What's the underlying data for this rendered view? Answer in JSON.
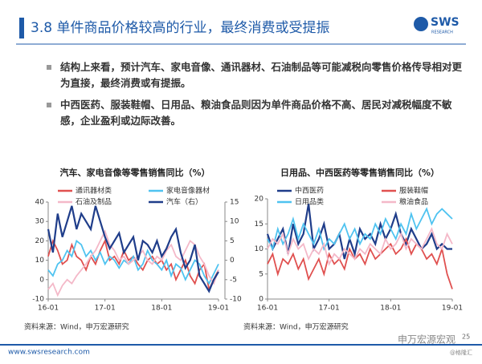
{
  "header": {
    "title": "3.8 单件商品价格较高的行业，最终消费或受提振",
    "logo": "SWS",
    "logo_sub": "RESEARCH"
  },
  "bullets": [
    "结构上来看，预计汽车、家电音像、通讯器材、石油制品等可能减税向零售价格传导相对更为直接，最终消费或有提振。",
    "中西医药、服装鞋帽、日用品、粮油食品则因为单件商品价格不高、居民对减税幅度不敏感，企业盈利或边际改善。"
  ],
  "chart_data": [
    {
      "type": "line",
      "title": "汽车、家电音像等零售销售同比（%）",
      "source": "资料来源：Wind，申万宏源研究",
      "categories": [
        "16-01",
        null,
        null,
        null,
        null,
        null,
        null,
        null,
        null,
        null,
        null,
        null,
        "17-01",
        null,
        null,
        null,
        null,
        null,
        null,
        null,
        null,
        null,
        null,
        null,
        "18-01",
        null,
        null,
        null,
        null,
        null,
        null,
        null,
        null,
        null,
        null,
        null,
        "19-01"
      ],
      "ylim": [
        -10,
        40
      ],
      "yticks": [
        -10,
        0,
        10,
        20,
        30,
        40
      ],
      "y2lim": [
        -10,
        15
      ],
      "y2ticks": [
        -10,
        -5,
        0,
        5,
        10,
        15
      ],
      "series": [
        {
          "name": "通讯器材类",
          "color": "#e0504f",
          "values": [
            12,
            20,
            15,
            8,
            10,
            18,
            12,
            10,
            5,
            12,
            8,
            15,
            20,
            10,
            12,
            8,
            15,
            10,
            12,
            8,
            5,
            10,
            12,
            8,
            10,
            5,
            8,
            0,
            5,
            10,
            2,
            -2,
            5,
            8,
            -5,
            0,
            5
          ]
        },
        {
          "name": "家电音像器材",
          "color": "#4fc3f0",
          "values": [
            5,
            2,
            8,
            10,
            15,
            12,
            20,
            18,
            12,
            15,
            10,
            14,
            8,
            12,
            10,
            6,
            10,
            8,
            12,
            5,
            8,
            15,
            10,
            8,
            5,
            10,
            2,
            8,
            6,
            0,
            5,
            10,
            8,
            2,
            -2,
            3,
            8
          ]
        },
        {
          "name": "石油及制品",
          "color": "#f4b8c8",
          "values": [
            -5,
            -2,
            -8,
            -3,
            0,
            -2,
            2,
            5,
            8,
            12,
            15,
            20,
            25,
            18,
            15,
            10,
            12,
            8,
            10,
            12,
            15,
            10,
            8,
            12,
            10,
            15,
            18,
            12,
            10,
            15,
            20,
            18,
            12,
            8,
            2,
            -2,
            5
          ]
        },
        {
          "name": "汽车（右）",
          "color": "#1f3d8a",
          "axis": "y2",
          "values": [
            8,
            2,
            12,
            6,
            10,
            14,
            8,
            12,
            10,
            8,
            14,
            10,
            6,
            3,
            5,
            7,
            2,
            4,
            6,
            0,
            5,
            4,
            2,
            5,
            1,
            3,
            6,
            8,
            2,
            -2,
            0,
            4,
            -4,
            -6,
            -8,
            -5,
            -3
          ]
        }
      ]
    },
    {
      "type": "line",
      "title": "日用品、中西医药等零售销售同比（%）",
      "source": "资料来源：Wind，申万宏源研究",
      "categories": [
        "16-01",
        null,
        null,
        null,
        null,
        null,
        null,
        null,
        null,
        null,
        null,
        null,
        "17-01",
        null,
        null,
        null,
        null,
        null,
        null,
        null,
        null,
        null,
        null,
        null,
        "18-01",
        null,
        null,
        null,
        null,
        null,
        null,
        null,
        null,
        null,
        null,
        null,
        "19-01"
      ],
      "ylim": [
        0,
        20
      ],
      "yticks": [
        0,
        5,
        10,
        15,
        20
      ],
      "series": [
        {
          "name": "中西医药",
          "color": "#1f3d8a",
          "values": [
            13,
            10,
            12,
            14,
            9,
            15,
            11,
            13,
            19,
            10,
            12,
            15,
            10,
            11,
            13,
            8,
            12,
            9,
            14,
            12,
            13,
            11,
            15,
            12,
            14,
            17,
            13,
            11,
            14,
            12,
            10,
            11,
            13,
            10,
            11,
            10,
            10
          ]
        },
        {
          "name": "服装鞋帽",
          "color": "#e0504f",
          "values": [
            7,
            9,
            5,
            8,
            7,
            9,
            6,
            8,
            4,
            6,
            8,
            5,
            9,
            7,
            8,
            6,
            10,
            8,
            9,
            7,
            10,
            8,
            9,
            10,
            11,
            9,
            10,
            12,
            9,
            11,
            10,
            8,
            9,
            7,
            10,
            5,
            2
          ]
        },
        {
          "name": "日用品类",
          "color": "#4fc3f0",
          "values": [
            12,
            10,
            14,
            11,
            13,
            16,
            12,
            15,
            13,
            11,
            14,
            10,
            12,
            11,
            13,
            15,
            12,
            14,
            11,
            13,
            12,
            15,
            13,
            16,
            14,
            12,
            15,
            13,
            17,
            14,
            16,
            18,
            15,
            17,
            18,
            17,
            16
          ]
        },
        {
          "name": "粮油食品",
          "color": "#f4b8c8",
          "values": [
            10,
            12,
            11,
            13,
            9,
            12,
            10,
            11,
            8,
            10,
            9,
            11,
            7,
            9,
            8,
            10,
            9,
            8,
            10,
            9,
            11,
            10,
            9,
            12,
            10,
            11,
            13,
            10,
            12,
            11,
            10,
            12,
            14,
            11,
            10,
            13,
            11
          ]
        }
      ]
    }
  ],
  "footer": {
    "url": "www.swsresearch.com",
    "page": "25",
    "watermark": "申万宏源宏观",
    "credit": "@格隆汇"
  }
}
